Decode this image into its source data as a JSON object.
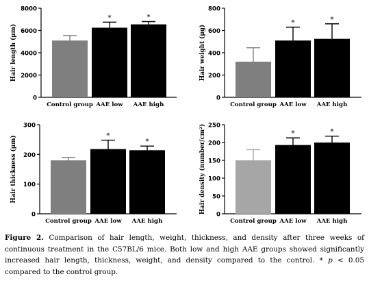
{
  "chart_data": [
    {
      "type": "bar",
      "categories": [
        "Control group",
        "AAE low",
        "AAE high"
      ],
      "values": [
        5100,
        6250,
        6550
      ],
      "errors": [
        450,
        500,
        250
      ],
      "significance": [
        "",
        "*",
        "*"
      ],
      "ylabel": "Hair length (μm)",
      "ylim": [
        0,
        8000
      ],
      "yticks": [
        "0",
        "2000",
        "4000",
        "6000",
        "8000"
      ],
      "bar_colors": [
        "#7f7f7f",
        "#000000",
        "#000000"
      ]
    },
    {
      "type": "bar",
      "categories": [
        "Control group",
        "AAE low",
        "AAE high"
      ],
      "values": [
        320,
        510,
        525
      ],
      "errors": [
        125,
        120,
        135
      ],
      "significance": [
        "",
        "*",
        "*"
      ],
      "ylabel": "Hair weight (μg)",
      "ylim": [
        0,
        800
      ],
      "yticks": [
        "0",
        "200",
        "400",
        "600",
        "800"
      ],
      "bar_colors": [
        "#7f7f7f",
        "#000000",
        "#000000"
      ]
    },
    {
      "type": "bar",
      "categories": [
        "Control group",
        "AAE low",
        "AAE high"
      ],
      "values": [
        180,
        218,
        214
      ],
      "errors": [
        10,
        30,
        14
      ],
      "significance": [
        "",
        "*",
        "*"
      ],
      "ylabel": "Hair thickness (μm)",
      "ylim": [
        0,
        300
      ],
      "yticks": [
        "0",
        "100",
        "200",
        "300"
      ],
      "bar_colors": [
        "#7f7f7f",
        "#000000",
        "#000000"
      ]
    },
    {
      "type": "bar",
      "categories": [
        "Control group",
        "AAE low",
        "AAE high"
      ],
      "values": [
        150,
        193,
        200
      ],
      "errors": [
        30,
        20,
        18
      ],
      "significance": [
        "",
        "*",
        "*"
      ],
      "ylabel": "Hair density (number/cm²)",
      "ylim": [
        0,
        250
      ],
      "yticks": [
        "0",
        "50",
        "100",
        "150",
        "200",
        "250"
      ],
      "bar_colors": [
        "#a6a6a6",
        "#000000",
        "#000000"
      ]
    }
  ],
  "caption": {
    "label": "Figure 2.",
    "text_before": " Comparison of hair length, weight, thickness, and density after three weeks of continuous treatment in the C57BL/6 mice.  Both low and high AAE groups showed significantly increased hair length, thickness, weight, and density compared to the control.  * ",
    "p_symbol": "p",
    "text_after": " < 0.05 compared to the control group."
  }
}
